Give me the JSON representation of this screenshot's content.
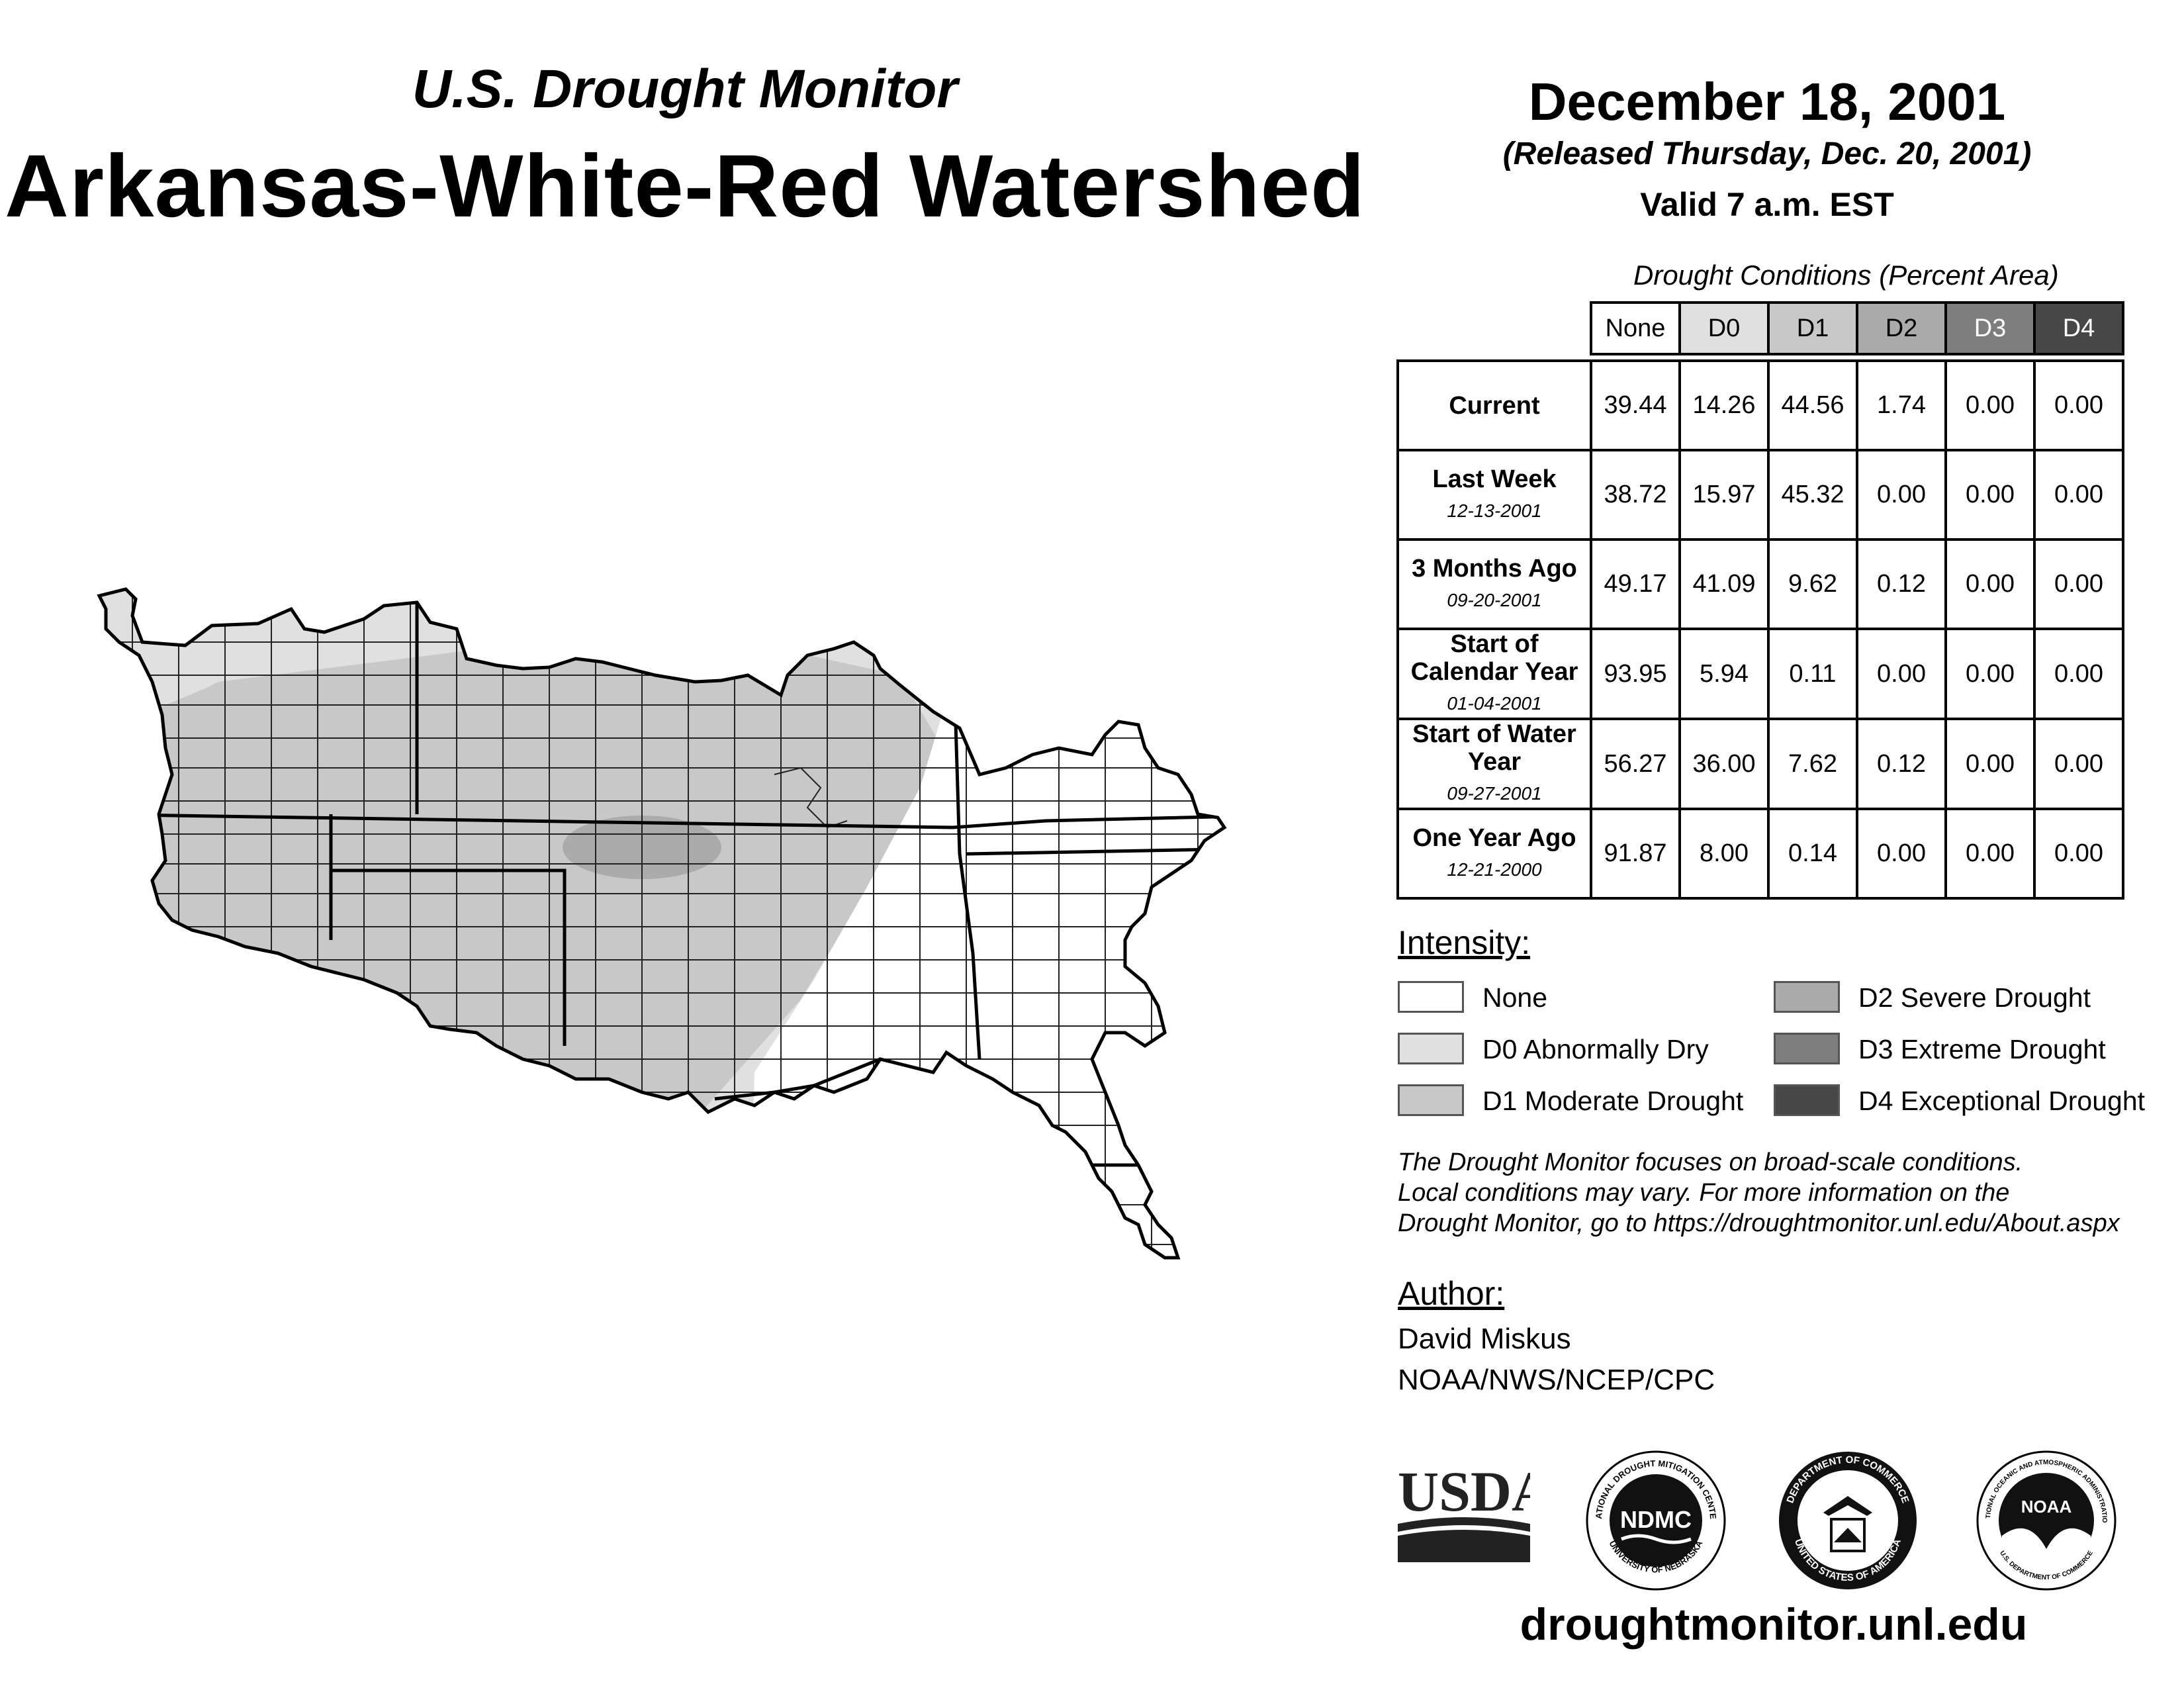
{
  "header": {
    "supertitle": "U.S. Drought Monitor",
    "title": "Arkansas-White-Red Watershed",
    "date": "December 18, 2001",
    "released": "(Released Thursday, Dec. 20, 2001)",
    "valid": "Valid 7 a.m. EST"
  },
  "table": {
    "title": "Drought Conditions (Percent Area)",
    "columns": [
      "None",
      "D0",
      "D1",
      "D2",
      "D3",
      "D4"
    ],
    "column_colors": [
      "#ffffff",
      "#e0e0e0",
      "#c8c8c8",
      "#ababab",
      "#7e7e7e",
      "#474747"
    ],
    "column_text_colors": [
      "#000000",
      "#000000",
      "#000000",
      "#000000",
      "#ffffff",
      "#ffffff"
    ],
    "rows": [
      {
        "label": "Current",
        "date": "",
        "values": [
          "39.44",
          "14.26",
          "44.56",
          "1.74",
          "0.00",
          "0.00"
        ]
      },
      {
        "label": "Last Week",
        "date": "12-13-2001",
        "values": [
          "38.72",
          "15.97",
          "45.32",
          "0.00",
          "0.00",
          "0.00"
        ]
      },
      {
        "label": "3 Months Ago",
        "date": "09-20-2001",
        "values": [
          "49.17",
          "41.09",
          "9.62",
          "0.12",
          "0.00",
          "0.00"
        ]
      },
      {
        "label": "Start of Calendar Year",
        "date": "01-04-2001",
        "values": [
          "93.95",
          "5.94",
          "0.11",
          "0.00",
          "0.00",
          "0.00"
        ]
      },
      {
        "label": "Start of Water Year",
        "date": "09-27-2001",
        "values": [
          "56.27",
          "36.00",
          "7.62",
          "0.12",
          "0.00",
          "0.00"
        ]
      },
      {
        "label": "One Year Ago",
        "date": "12-21-2000",
        "values": [
          "91.87",
          "8.00",
          "0.14",
          "0.00",
          "0.00",
          "0.00"
        ]
      }
    ]
  },
  "legend": {
    "heading": "Intensity:",
    "items": [
      {
        "label": "None",
        "color": "#ffffff"
      },
      {
        "label": "D0 Abnormally Dry",
        "color": "#e0e0e0"
      },
      {
        "label": "D1 Moderate Drought",
        "color": "#c8c8c8"
      },
      {
        "label": "D2 Severe Drought",
        "color": "#ababab"
      },
      {
        "label": "D3 Extreme Drought",
        "color": "#7e7e7e"
      },
      {
        "label": "D4 Exceptional Drought",
        "color": "#474747"
      }
    ]
  },
  "note": {
    "line1": "The Drought Monitor focuses on broad-scale conditions.",
    "line2": "Local conditions may vary. For more information on the",
    "line3": "Drought Monitor, go to https://droughtmonitor.unl.edu/About.aspx"
  },
  "author": {
    "heading": "Author:",
    "name": "David Miskus",
    "org": "NOAA/NWS/NCEP/CPC"
  },
  "logos": {
    "usda": "USDA",
    "ndmc": "NDMC",
    "ndmc_ring_top": "NATIONAL DROUGHT MITIGATION CENTER",
    "ndmc_ring_bottom": "UNIVERSITY OF NEBRASKA",
    "doc_ring_top": "DEPARTMENT OF COMMERCE",
    "doc_ring_bottom": "UNITED STATES OF AMERICA",
    "noaa": "NOAA",
    "noaa_ring_top": "NATIONAL OCEANIC AND ATMOSPHERIC ADMINISTRATION",
    "noaa_ring_bottom": "U.S. DEPARTMENT OF COMMERCE"
  },
  "website": "droughtmonitor.unl.edu"
}
